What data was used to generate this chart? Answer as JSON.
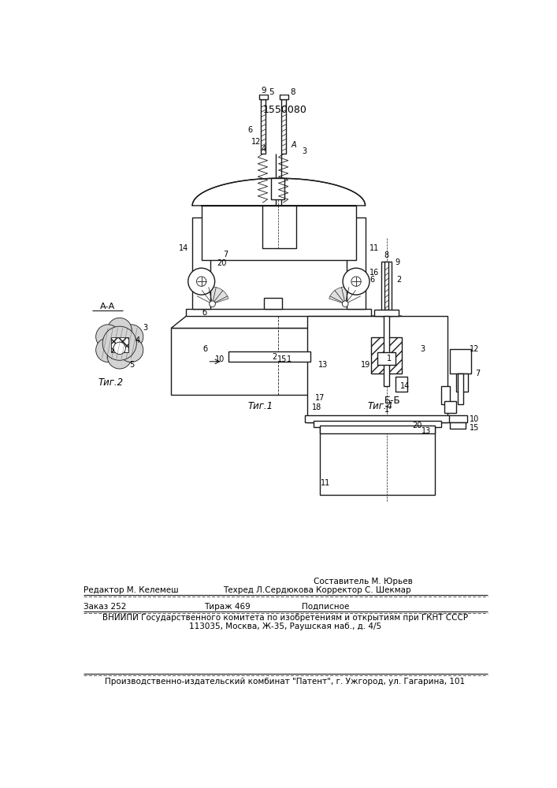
{
  "patent_number": "1550080",
  "bg_color": "#ffffff",
  "line_color": "#1a1a1a",
  "fig1_label": "Τиг.1",
  "fig2_label": "Τиг.2",
  "fig4_label": "Τиг.4",
  "section_label": "Б-Б",
  "section_label2": "А-А",
  "footer_sostavitel": "Составитель М. Юрьев",
  "footer_redaktor": "Редактор М. Келемеш",
  "footer_tekhred": "Техред Л.Сердюкова Корректор С. Шекмар",
  "footer_zakaz": "Заказ 252",
  "footer_tirazh": "Тираж 469",
  "footer_podpisnoe": "Подписное",
  "footer_vniili": "ВНИИПИ Государственного комитета по изобретениям и открытиям при ГКНТ СССР",
  "footer_address": "113035, Москва, Ж-35, Раушская наб., д. 4/5",
  "footer_patent": "Производственно-издательский комбинат \"Патент\", г. Ужгород, ул. Гагарина, 101"
}
